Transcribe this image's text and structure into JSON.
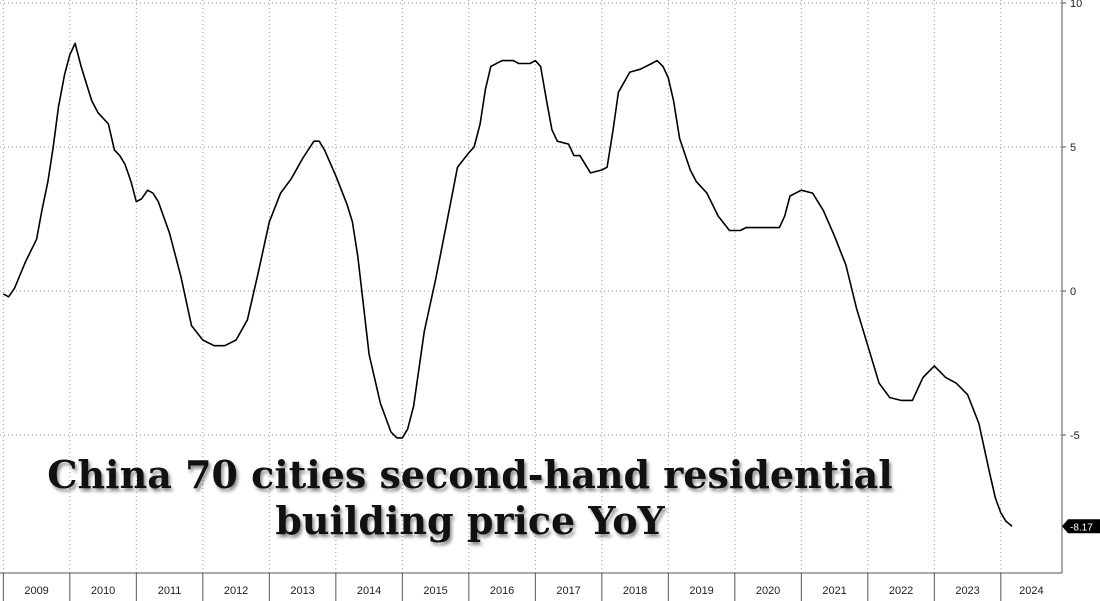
{
  "chart_data": {
    "type": "line",
    "title": "China 70 cities second-hand residential building price YoY",
    "title_lines": [
      "China 70 cities second-hand residential",
      "building price YoY"
    ],
    "ylim": [
      -10,
      10
    ],
    "yticks": [
      10,
      5,
      0,
      -5
    ],
    "xlim": [
      2008.95,
      2024.92
    ],
    "x_labels": [
      "2009",
      "2010",
      "2011",
      "2012",
      "2013",
      "2014",
      "2015",
      "2016",
      "2017",
      "2018",
      "2019",
      "2020",
      "2021",
      "2022",
      "2023",
      "2024"
    ],
    "grid": true,
    "last_value_label": "-8.17",
    "series": [
      {
        "color": "#000000",
        "points": [
          [
            2009.0,
            -0.1
          ],
          [
            2009.08,
            -0.2
          ],
          [
            2009.17,
            0.1
          ],
          [
            2009.33,
            1.0
          ],
          [
            2009.5,
            1.8
          ],
          [
            2009.58,
            2.8
          ],
          [
            2009.67,
            3.8
          ],
          [
            2009.75,
            5.0
          ],
          [
            2009.83,
            6.4
          ],
          [
            2009.92,
            7.5
          ],
          [
            2010.0,
            8.2
          ],
          [
            2010.08,
            8.6
          ],
          [
            2010.17,
            7.8
          ],
          [
            2010.25,
            7.2
          ],
          [
            2010.33,
            6.6
          ],
          [
            2010.42,
            6.2
          ],
          [
            2010.5,
            6.0
          ],
          [
            2010.58,
            5.8
          ],
          [
            2010.67,
            4.9
          ],
          [
            2010.75,
            4.7
          ],
          [
            2010.83,
            4.4
          ],
          [
            2010.92,
            3.8
          ],
          [
            2011.0,
            3.1
          ],
          [
            2011.08,
            3.2
          ],
          [
            2011.17,
            3.5
          ],
          [
            2011.25,
            3.4
          ],
          [
            2011.33,
            3.1
          ],
          [
            2011.5,
            2.0
          ],
          [
            2011.67,
            0.5
          ],
          [
            2011.83,
            -1.2
          ],
          [
            2012.0,
            -1.7
          ],
          [
            2012.17,
            -1.9
          ],
          [
            2012.33,
            -1.9
          ],
          [
            2012.5,
            -1.7
          ],
          [
            2012.67,
            -1.0
          ],
          [
            2012.83,
            0.6
          ],
          [
            2013.0,
            2.4
          ],
          [
            2013.17,
            3.4
          ],
          [
            2013.33,
            3.9
          ],
          [
            2013.5,
            4.6
          ],
          [
            2013.67,
            5.2
          ],
          [
            2013.75,
            5.2
          ],
          [
            2013.83,
            4.9
          ],
          [
            2014.0,
            4.0
          ],
          [
            2014.17,
            3.0
          ],
          [
            2014.25,
            2.4
          ],
          [
            2014.33,
            1.2
          ],
          [
            2014.42,
            -0.6
          ],
          [
            2014.5,
            -2.2
          ],
          [
            2014.67,
            -3.9
          ],
          [
            2014.83,
            -4.9
          ],
          [
            2014.92,
            -5.1
          ],
          [
            2015.0,
            -5.1
          ],
          [
            2015.08,
            -4.8
          ],
          [
            2015.17,
            -4.0
          ],
          [
            2015.33,
            -1.4
          ],
          [
            2015.5,
            0.4
          ],
          [
            2015.67,
            2.4
          ],
          [
            2015.83,
            4.3
          ],
          [
            2016.0,
            4.8
          ],
          [
            2016.08,
            5.0
          ],
          [
            2016.17,
            5.8
          ],
          [
            2016.25,
            7.0
          ],
          [
            2016.33,
            7.8
          ],
          [
            2016.5,
            8.0
          ],
          [
            2016.67,
            8.0
          ],
          [
            2016.75,
            7.9
          ],
          [
            2016.92,
            7.9
          ],
          [
            2017.0,
            8.0
          ],
          [
            2017.08,
            7.8
          ],
          [
            2017.17,
            6.6
          ],
          [
            2017.25,
            5.6
          ],
          [
            2017.33,
            5.2
          ],
          [
            2017.5,
            5.1
          ],
          [
            2017.58,
            4.7
          ],
          [
            2017.67,
            4.7
          ],
          [
            2017.83,
            4.1
          ],
          [
            2018.0,
            4.2
          ],
          [
            2018.08,
            4.3
          ],
          [
            2018.17,
            5.6
          ],
          [
            2018.25,
            6.9
          ],
          [
            2018.42,
            7.6
          ],
          [
            2018.58,
            7.7
          ],
          [
            2018.75,
            7.9
          ],
          [
            2018.83,
            8.0
          ],
          [
            2018.92,
            7.8
          ],
          [
            2019.0,
            7.4
          ],
          [
            2019.08,
            6.6
          ],
          [
            2019.17,
            5.3
          ],
          [
            2019.33,
            4.2
          ],
          [
            2019.42,
            3.8
          ],
          [
            2019.58,
            3.4
          ],
          [
            2019.75,
            2.6
          ],
          [
            2019.92,
            2.1
          ],
          [
            2020.08,
            2.1
          ],
          [
            2020.17,
            2.2
          ],
          [
            2020.33,
            2.2
          ],
          [
            2020.5,
            2.2
          ],
          [
            2020.67,
            2.2
          ],
          [
            2020.75,
            2.6
          ],
          [
            2020.83,
            3.3
          ],
          [
            2021.0,
            3.5
          ],
          [
            2021.17,
            3.4
          ],
          [
            2021.33,
            2.8
          ],
          [
            2021.5,
            1.9
          ],
          [
            2021.67,
            0.9
          ],
          [
            2021.83,
            -0.6
          ],
          [
            2022.0,
            -1.9
          ],
          [
            2022.17,
            -3.2
          ],
          [
            2022.33,
            -3.7
          ],
          [
            2022.5,
            -3.8
          ],
          [
            2022.67,
            -3.8
          ],
          [
            2022.83,
            -3.0
          ],
          [
            2023.0,
            -2.6
          ],
          [
            2023.17,
            -3.0
          ],
          [
            2023.33,
            -3.2
          ],
          [
            2023.5,
            -3.6
          ],
          [
            2023.67,
            -4.6
          ],
          [
            2023.83,
            -6.3
          ],
          [
            2023.92,
            -7.2
          ],
          [
            2024.0,
            -7.7
          ],
          [
            2024.08,
            -8.0
          ],
          [
            2024.17,
            -8.17
          ]
        ]
      }
    ]
  }
}
